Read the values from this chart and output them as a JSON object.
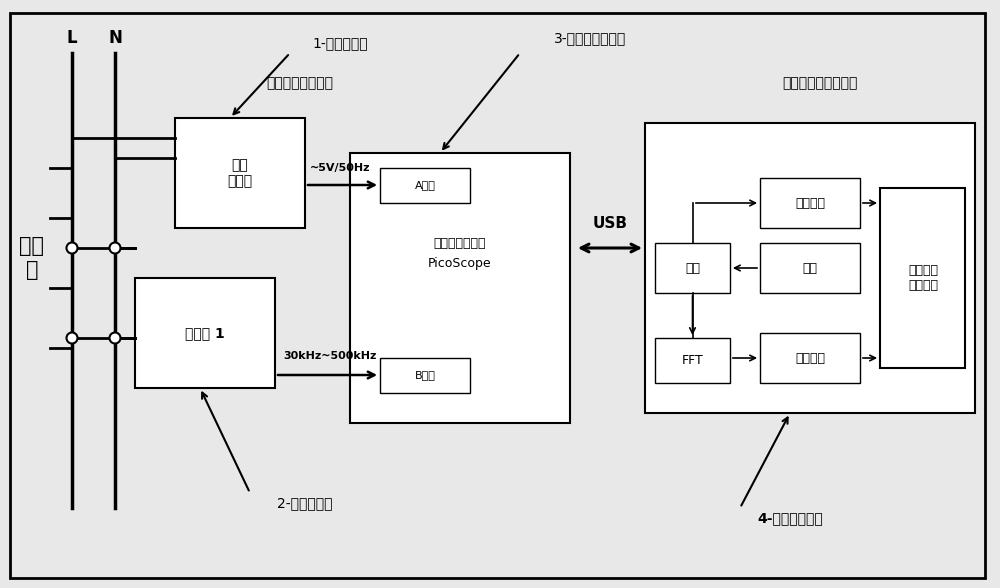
{
  "bg_color": "#e8e8e8",
  "fig_width": 10.0,
  "fig_height": 5.88,
  "labels": {
    "L": "L",
    "N": "N",
    "power_line": "电力\n线",
    "transformer_label": "1-工频变压器",
    "coupler_label": "2-单相耦合器",
    "daq_label": "3-高速数据采集卡",
    "analysis_label": "4-测试分析原件",
    "hw_section": "测试设备（硬件）",
    "sw_section": "笔记本电脑（软件）",
    "transformer_box": "工频\n变压器",
    "coupler_box": "耦合器 1",
    "daq_box_line1": "高速数据采集卡",
    "daq_box_line2": "PicoScope",
    "ch_a": "A通道",
    "ch_b": "B通道",
    "signal_a": "~5V/50Hz",
    "signal_b": "30kHz~500kHz",
    "usb": "USB",
    "data_box": "数据",
    "fft_box": "FFT",
    "time_wave": "时域波形",
    "control": "控制",
    "freq_wave": "频域波形",
    "display_box": "数据显示\n数据存储"
  }
}
